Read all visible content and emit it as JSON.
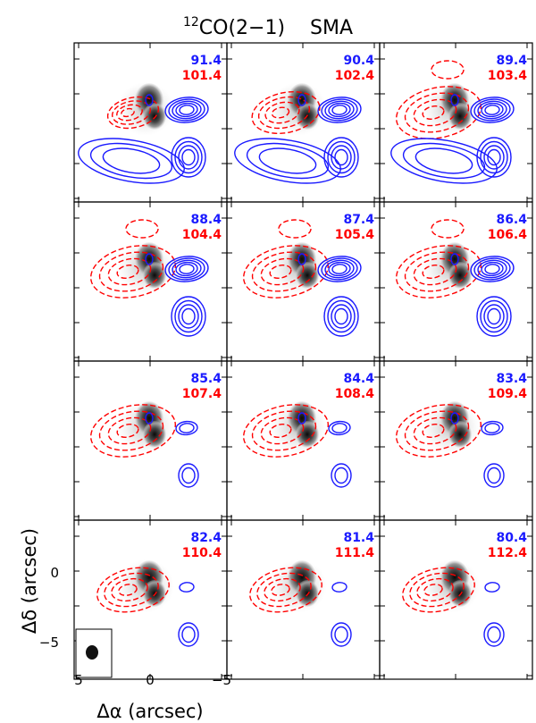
{
  "figure": {
    "title_sup": "12",
    "title_main": "CO(2−1)",
    "title_instrument": "SMA",
    "xlabel": "Δα (arcsec)",
    "ylabel": "Δδ (arcsec)",
    "blue_color": "#1a1aff",
    "red_color": "#ff0000"
  },
  "chart_data": {
    "type": "contour-channel-map",
    "title": "12CO(2-1) SMA",
    "xlabel": "Δα (arcsec)",
    "ylabel": "Δδ (arcsec)",
    "xlim": [
      5,
      -5
    ],
    "ylim": [
      -7.5,
      5.5
    ],
    "x_ticks": [
      5,
      0,
      -5
    ],
    "y_ticks": [
      0,
      -5
    ],
    "panels": [
      {
        "blue": "91.4",
        "red": "101.4"
      },
      {
        "blue": "90.4",
        "red": "102.4"
      },
      {
        "blue": "89.4",
        "red": "103.4"
      },
      {
        "blue": "88.4",
        "red": "104.4"
      },
      {
        "blue": "87.4",
        "red": "105.4"
      },
      {
        "blue": "86.4",
        "red": "106.4"
      },
      {
        "blue": "85.4",
        "red": "107.4"
      },
      {
        "blue": "84.4",
        "red": "108.4"
      },
      {
        "blue": "83.4",
        "red": "109.4"
      },
      {
        "blue": "82.4",
        "red": "110.4"
      },
      {
        "blue": "81.4",
        "red": "111.4"
      },
      {
        "blue": "80.4",
        "red": "112.4"
      }
    ]
  }
}
